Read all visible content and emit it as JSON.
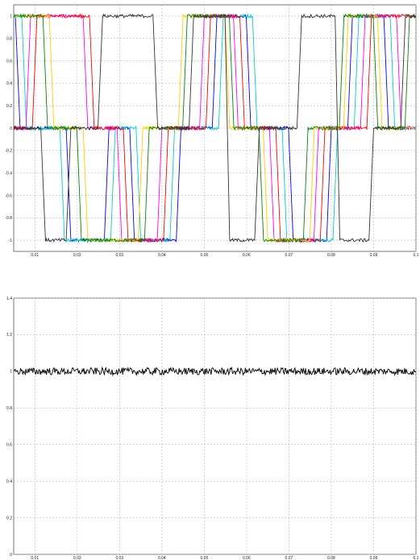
{
  "chart_data": [
    {
      "type": "line",
      "title": "",
      "xlabel": "",
      "ylabel": "",
      "xlim": [
        0.005,
        0.1
      ],
      "ylim": [
        -1.1,
        1.1
      ],
      "grid": true,
      "x_ticks": [
        0.01,
        0.02,
        0.03,
        0.04,
        0.05,
        0.06,
        0.07,
        0.08,
        0.09,
        0.1
      ],
      "x_tick_labels": [
        "0.01",
        "0.02",
        "0.03",
        "0.04",
        "0.05",
        "0.06",
        "0.07",
        "0.08",
        "0.09",
        "0.1"
      ],
      "y_ticks": [
        1,
        0.8,
        0.6,
        0.4,
        0.2,
        0,
        -0.2,
        -0.4,
        -0.6,
        -0.8,
        -1
      ],
      "y_tick_labels": [
        "1",
        "0.8",
        "0.6",
        "0.4",
        "0.2",
        "0",
        "-0.2",
        "-0.4",
        "-0.6",
        "-0.8",
        "-1"
      ],
      "noise_amplitude": 0.015,
      "series": [
        {
          "color": "#0000ff",
          "levels": [
            {
              "x": 0.005,
              "y": 1
            },
            {
              "x": 0.0065,
              "y": 0
            },
            {
              "x": 0.0185,
              "y": -1
            },
            {
              "x": 0.0275,
              "y": 0
            },
            {
              "x": 0.0335,
              "y": -1
            },
            {
              "x": 0.0445,
              "y": 0
            },
            {
              "x": 0.053,
              "y": 1
            },
            {
              "x": 0.061,
              "y": 0
            },
            {
              "x": 0.071,
              "y": -1
            },
            {
              "x": 0.08,
              "y": 0
            },
            {
              "x": 0.085,
              "y": 1
            },
            {
              "x": 0.0935,
              "y": 0
            },
            {
              "x": 0.1,
              "y": 0
            }
          ]
        },
        {
          "color": "#00cccc",
          "levels": [
            {
              "x": 0.005,
              "y": 1
            },
            {
              "x": 0.008,
              "y": 0
            },
            {
              "x": 0.017,
              "y": -1
            },
            {
              "x": 0.029,
              "y": 0
            },
            {
              "x": 0.035,
              "y": -1
            },
            {
              "x": 0.043,
              "y": 0
            },
            {
              "x": 0.0545,
              "y": 1
            },
            {
              "x": 0.0625,
              "y": 0
            },
            {
              "x": 0.0695,
              "y": -1
            },
            {
              "x": 0.0815,
              "y": 0
            },
            {
              "x": 0.0865,
              "y": 1
            },
            {
              "x": 0.095,
              "y": 0
            },
            {
              "x": 0.1,
              "y": 0
            }
          ]
        },
        {
          "color": "#ff00ff",
          "levels": [
            {
              "x": 0.005,
              "y": 0
            },
            {
              "x": 0.009,
              "y": 1
            },
            {
              "x": 0.0225,
              "y": 0
            },
            {
              "x": 0.0305,
              "y": -1
            },
            {
              "x": 0.04,
              "y": 0
            },
            {
              "x": 0.05,
              "y": 1
            },
            {
              "x": 0.058,
              "y": 0
            },
            {
              "x": 0.0665,
              "y": -1
            },
            {
              "x": 0.077,
              "y": 0
            },
            {
              "x": 0.088,
              "y": 1
            },
            {
              "x": 0.0965,
              "y": 0
            },
            {
              "x": 0.1,
              "y": 0
            }
          ]
        },
        {
          "color": "#ff0000",
          "levels": [
            {
              "x": 0.005,
              "y": 0
            },
            {
              "x": 0.0105,
              "y": 1
            },
            {
              "x": 0.024,
              "y": 0
            },
            {
              "x": 0.032,
              "y": -1
            },
            {
              "x": 0.0415,
              "y": 0
            },
            {
              "x": 0.0515,
              "y": 1
            },
            {
              "x": 0.0595,
              "y": 0
            },
            {
              "x": 0.068,
              "y": -1
            },
            {
              "x": 0.0785,
              "y": 0
            },
            {
              "x": 0.0895,
              "y": 1
            },
            {
              "x": 0.1,
              "y": 1
            }
          ]
        },
        {
          "color": "#ffcc00",
          "levels": [
            {
              "x": 0.005,
              "y": 1
            },
            {
              "x": 0.0145,
              "y": 0
            },
            {
              "x": 0.0225,
              "y": -1
            },
            {
              "x": 0.0355,
              "y": 0
            },
            {
              "x": 0.045,
              "y": 1
            },
            {
              "x": 0.056,
              "y": 0
            },
            {
              "x": 0.065,
              "y": -1
            },
            {
              "x": 0.076,
              "y": 0
            },
            {
              "x": 0.084,
              "y": 1
            },
            {
              "x": 0.092,
              "y": 0
            },
            {
              "x": 0.1,
              "y": 0
            }
          ]
        },
        {
          "color": "#008800",
          "levels": [
            {
              "x": 0.005,
              "y": 1
            },
            {
              "x": 0.013,
              "y": 0
            },
            {
              "x": 0.021,
              "y": -1
            },
            {
              "x": 0.037,
              "y": 0
            },
            {
              "x": 0.046,
              "y": 1
            },
            {
              "x": 0.057,
              "y": 0
            },
            {
              "x": 0.064,
              "y": -1
            },
            {
              "x": 0.0745,
              "y": 0
            },
            {
              "x": 0.083,
              "y": 1
            },
            {
              "x": 0.091,
              "y": 0
            },
            {
              "x": 0.0985,
              "y": 1
            },
            {
              "x": 0.1,
              "y": 1
            }
          ]
        },
        {
          "color": "#333333",
          "levels": [
            {
              "x": 0.005,
              "y": 0
            },
            {
              "x": 0.0125,
              "y": -1
            },
            {
              "x": 0.0185,
              "y": 0
            },
            {
              "x": 0.026,
              "y": 1
            },
            {
              "x": 0.039,
              "y": 0
            },
            {
              "x": 0.0475,
              "y": 1
            },
            {
              "x": 0.056,
              "y": -1
            },
            {
              "x": 0.063,
              "y": 0
            },
            {
              "x": 0.073,
              "y": 1
            },
            {
              "x": 0.082,
              "y": -1
            },
            {
              "x": 0.09,
              "y": 0
            },
            {
              "x": 0.0975,
              "y": 1
            },
            {
              "x": 0.1,
              "y": 1
            }
          ]
        }
      ]
    },
    {
      "type": "line",
      "title": "",
      "xlabel": "",
      "ylabel": "",
      "xlim": [
        0.005,
        0.1
      ],
      "ylim": [
        0,
        1.4
      ],
      "grid": true,
      "x_ticks": [
        0.01,
        0.02,
        0.03,
        0.04,
        0.05,
        0.06,
        0.07,
        0.08,
        0.09,
        0.1
      ],
      "x_tick_labels": [
        "0.01",
        "0.02",
        "0.03",
        "0.04",
        "0.05",
        "0.06",
        "0.07",
        "0.08",
        "0.09",
        "0.1"
      ],
      "y_ticks": [
        1.4,
        1.2,
        1,
        0.8,
        0.6,
        0.4,
        0.2,
        0
      ],
      "y_tick_labels": [
        "1.4",
        "1.2",
        "1",
        "0.8",
        "0.6",
        "0.4",
        "0.2",
        "0"
      ],
      "noise_amplitude": 0.02,
      "series": [
        {
          "color": "#000000",
          "levels": [
            {
              "x": 0.005,
              "y": 1
            },
            {
              "x": 0.1,
              "y": 1
            }
          ]
        }
      ]
    }
  ]
}
